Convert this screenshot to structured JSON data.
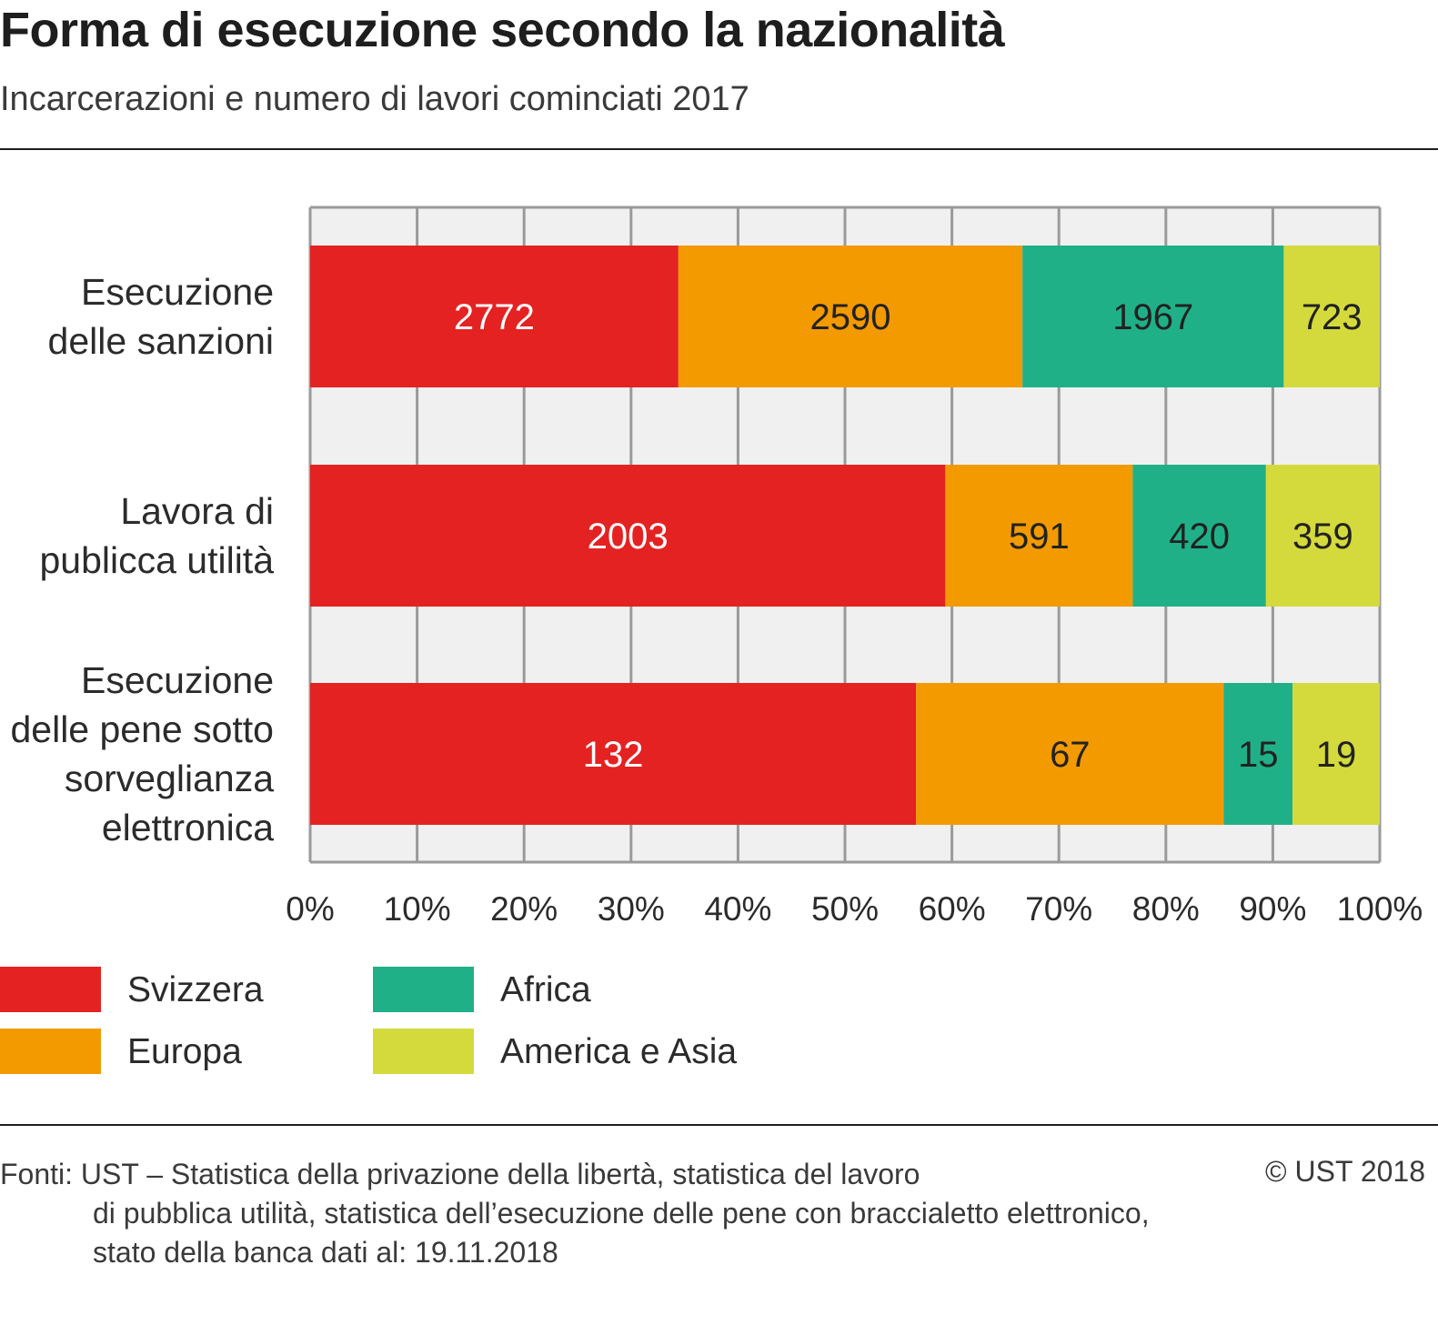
{
  "title": "Forma di esecuzione secondo la nazionalità",
  "subtitle": "Incarcerazioni e numero di lavori cominciati 2017",
  "colors": {
    "Svizzera": "#e42222",
    "Europa": "#f29a00",
    "Africa": "#20b088",
    "America e Asia": "#d4da3b",
    "plot_background": "#f0f0f0",
    "gridline": "#9a9a9a"
  },
  "chart_data": {
    "type": "bar",
    "orientation": "horizontal",
    "stacked": "percent",
    "categories": [
      [
        "Esecuzione",
        "delle sanzioni"
      ],
      [
        "Lavora di",
        "publicca utilità"
      ],
      [
        "Esecuzione",
        "delle pene sotto",
        "sorveglianza",
        "elettronica"
      ]
    ],
    "series": [
      {
        "name": "Svizzera",
        "values": [
          2772,
          2003,
          132
        ],
        "labels": [
          "2772",
          "2003",
          "132"
        ]
      },
      {
        "name": "Europa",
        "values": [
          2590,
          591,
          67
        ],
        "labels": [
          "2590",
          "591",
          "67"
        ]
      },
      {
        "name": "Africa",
        "values": [
          1967,
          420,
          15
        ],
        "labels": [
          "1967",
          "420",
          "15"
        ]
      },
      {
        "name": "America e Asia",
        "values": [
          723,
          359,
          19
        ],
        "labels": [
          "723",
          "359",
          "19"
        ]
      }
    ],
    "xticks": [
      "0%",
      "10%",
      "20%",
      "30%",
      "40%",
      "50%",
      "60%",
      "70%",
      "80%",
      "90%",
      "100%"
    ],
    "xlim": [
      0,
      100
    ],
    "grid": true,
    "legend": "bottom"
  },
  "legend": [
    {
      "label": "Svizzera"
    },
    {
      "label": "Europa"
    },
    {
      "label": "Africa"
    },
    {
      "label": "America e Asia"
    }
  ],
  "source": {
    "lines": [
      "Fonti: UST – Statistica della privazione della libertà, statistica del lavoro",
      "di pubblica utilità, statistica dell’esecuzione delle pene con braccialetto elettronico,",
      "stato della banca dati al: 19.11.2018"
    ],
    "copyright": "© UST 2018"
  }
}
